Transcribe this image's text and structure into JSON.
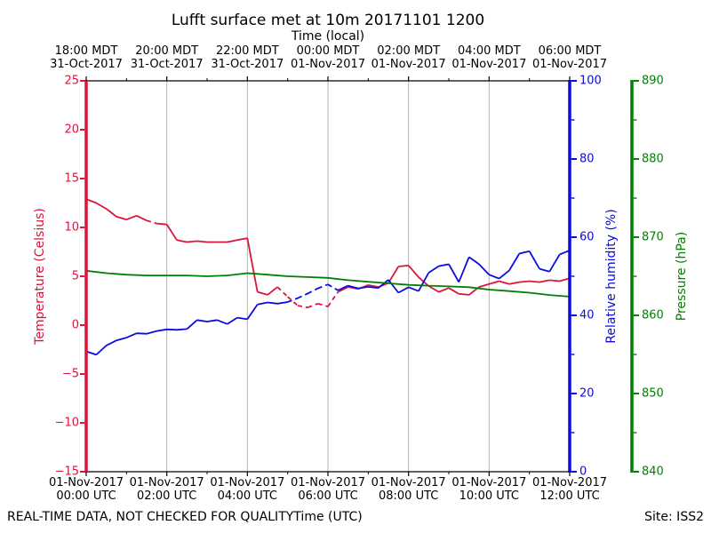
{
  "footer": {
    "left": "REAL-TIME DATA, NOT CHECKED FOR QUALITY",
    "right": "Site: ISS2"
  },
  "colors": {
    "temperature": "#dc143c",
    "humidity": "#0b0be0",
    "pressure": "#008000",
    "grid": "#b0b0b0",
    "frame": "#000000",
    "background": "#ffffff"
  },
  "chart_data": {
    "type": "line",
    "title": "Lufft surface met at 10m 20171101 1200",
    "grid": {
      "vertical": true,
      "horizontal": false
    },
    "x_unit": "hours since 01-Nov-2017 00:00 UTC",
    "x_range_hours": [
      0,
      12
    ],
    "top_axis": {
      "label": "Time (local)",
      "ticks": [
        {
          "time": "18:00 MDT",
          "date": "31-Oct-2017"
        },
        {
          "time": "20:00 MDT",
          "date": "31-Oct-2017"
        },
        {
          "time": "22:00 MDT",
          "date": "31-Oct-2017"
        },
        {
          "time": "00:00 MDT",
          "date": "01-Nov-2017"
        },
        {
          "time": "02:00 MDT",
          "date": "01-Nov-2017"
        },
        {
          "time": "04:00 MDT",
          "date": "01-Nov-2017"
        },
        {
          "time": "06:00 MDT",
          "date": "01-Nov-2017"
        }
      ]
    },
    "bottom_axis": {
      "label": "Time (UTC)",
      "ticks": [
        {
          "date": "01-Nov-2017",
          "time": "00:00 UTC"
        },
        {
          "date": "01-Nov-2017",
          "time": "02:00 UTC"
        },
        {
          "date": "01-Nov-2017",
          "time": "04:00 UTC"
        },
        {
          "date": "01-Nov-2017",
          "time": "06:00 UTC"
        },
        {
          "date": "01-Nov-2017",
          "time": "08:00 UTC"
        },
        {
          "date": "01-Nov-2017",
          "time": "10:00 UTC"
        },
        {
          "date": "01-Nov-2017",
          "time": "12:00 UTC"
        }
      ]
    },
    "axes": {
      "temperature": {
        "label": "Temperature (Celsius)",
        "side": "left",
        "min": -15,
        "max": 25,
        "color": "#dc143c",
        "ticks": [
          25,
          20,
          15,
          10,
          5,
          0,
          -5,
          -10,
          -15
        ],
        "tick_labels": [
          "25",
          "20",
          "15",
          "10",
          "5",
          "0",
          "−5",
          "−10",
          "−15"
        ],
        "minor_ticks": []
      },
      "humidity": {
        "label": "Relative humidity (%)",
        "side": "right",
        "min": 0,
        "max": 100,
        "color": "#0b0be0",
        "ticks": [
          100,
          80,
          60,
          40,
          20,
          0
        ],
        "tick_labels": [
          "100",
          "80",
          "60",
          "40",
          "20",
          "0"
        ],
        "minor_ticks": [
          90,
          70,
          50,
          30,
          10
        ]
      },
      "pressure": {
        "label": "Pressure (hPa)",
        "side": "far-right",
        "min": 840,
        "max": 890,
        "color": "#008000",
        "ticks": [
          890,
          880,
          870,
          860,
          850,
          840
        ],
        "tick_labels": [
          "890",
          "880",
          "870",
          "860",
          "850",
          "840"
        ],
        "minor_ticks": [
          885,
          875,
          865,
          855,
          845
        ]
      }
    },
    "series": [
      {
        "name": "Temperature",
        "axis": "temperature",
        "color": "#dc143c",
        "x": [
          0,
          0.25,
          0.5,
          0.75,
          1,
          1.25,
          1.5,
          1.75,
          2,
          2.25,
          2.5,
          2.75,
          3,
          3.25,
          3.5,
          3.75,
          4,
          4.25,
          4.5,
          4.75,
          5,
          5.25,
          5.5,
          5.75,
          6,
          6.25,
          6.5,
          6.75,
          7,
          7.25,
          7.5,
          7.75,
          8,
          8.25,
          8.5,
          8.75,
          9,
          9.25,
          9.5,
          9.75,
          10,
          10.25,
          10.5,
          10.75,
          11,
          11.25,
          11.5,
          11.75,
          12
        ],
        "values": [
          12.9,
          12.5,
          11.9,
          11.1,
          10.8,
          11.2,
          10.7,
          10.4,
          10.3,
          8.7,
          8.5,
          8.6,
          8.5,
          8.5,
          8.5,
          8.7,
          8.9,
          3.4,
          3.1,
          3.9,
          2.9,
          2.0,
          1.8,
          2.2,
          1.9,
          3.4,
          3.9,
          3.7,
          4.1,
          3.9,
          4.3,
          6.0,
          6.1,
          4.9,
          4.0,
          3.4,
          3.8,
          3.2,
          3.1,
          3.9,
          4.2,
          4.5,
          4.2,
          4.4,
          4.5,
          4.4,
          4.6,
          4.5,
          4.8
        ],
        "dash_ranges": [
          [
            1.5,
            1.8
          ],
          [
            4.85,
            6.15
          ]
        ]
      },
      {
        "name": "Relative humidity",
        "axis": "humidity",
        "color": "#0b0be0",
        "x": [
          0,
          0.25,
          0.5,
          0.75,
          1,
          1.25,
          1.5,
          1.75,
          2,
          2.25,
          2.5,
          2.75,
          3,
          3.25,
          3.5,
          3.75,
          4,
          4.25,
          4.5,
          4.75,
          5,
          5.25,
          5.5,
          5.75,
          6,
          6.25,
          6.5,
          6.75,
          7,
          7.25,
          7.5,
          7.75,
          8,
          8.25,
          8.5,
          8.75,
          9,
          9.25,
          9.5,
          9.75,
          10,
          10.25,
          10.5,
          10.75,
          11,
          11.25,
          11.5,
          11.75,
          12
        ],
        "values": [
          30.8,
          29.9,
          32.3,
          33.6,
          34.3,
          35.4,
          35.3,
          36.0,
          36.4,
          36.3,
          36.5,
          38.8,
          38.4,
          38.8,
          37.8,
          39.4,
          39.0,
          42.8,
          43.3,
          43.0,
          43.4,
          44.4,
          45.6,
          46.9,
          47.9,
          46.4,
          47.6,
          46.9,
          47.3,
          47.0,
          49.1,
          45.8,
          47.2,
          46.2,
          50.9,
          52.6,
          53.1,
          48.5,
          54.9,
          53.1,
          50.4,
          49.4,
          51.5,
          55.8,
          56.4,
          51.9,
          51.2,
          55.6,
          56.6
        ],
        "dash_ranges": [
          [
            5.0,
            6.15
          ]
        ]
      },
      {
        "name": "Pressure",
        "axis": "pressure",
        "color": "#008000",
        "x": [
          0,
          0.5,
          1,
          1.5,
          2,
          2.5,
          3,
          3.5,
          4,
          4.5,
          5,
          5.5,
          6,
          6.5,
          7,
          7.5,
          8,
          8.5,
          9,
          9.5,
          10,
          10.5,
          11,
          11.5,
          12
        ],
        "values": [
          865.7,
          865.4,
          865.2,
          865.1,
          865.1,
          865.1,
          865.0,
          865.1,
          865.4,
          865.2,
          865.0,
          864.9,
          864.8,
          864.5,
          864.3,
          864.1,
          863.9,
          863.8,
          863.7,
          863.6,
          863.3,
          863.1,
          862.9,
          862.6,
          862.4
        ],
        "dash_ranges": []
      }
    ]
  }
}
